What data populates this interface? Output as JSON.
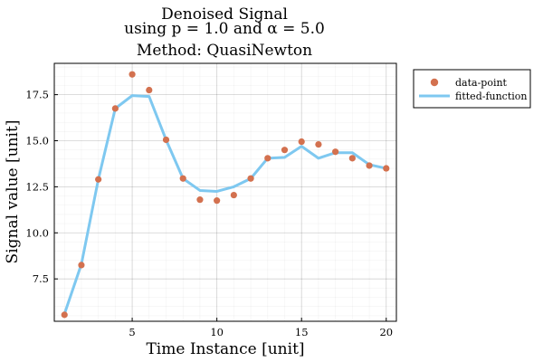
{
  "chart_data": {
    "type": "line",
    "title_lines": [
      "Denoised Signal",
      "using p = 1.0 and α = 5.0",
      "Method: QuasiNewton"
    ],
    "xlabel": "Time Instance [unit]",
    "ylabel": "Signal value [unit]",
    "xlim": [
      0.4,
      20.6
    ],
    "ylim": [
      5.2,
      19.2
    ],
    "x_ticks": [
      5,
      10,
      15,
      20
    ],
    "y_ticks": [
      7.5,
      10.0,
      12.5,
      15.0,
      17.5
    ],
    "y_tick_labels": [
      "7.5",
      "10.0",
      "12.5",
      "15.0",
      "17.5"
    ],
    "grid": true,
    "minor_grid": true,
    "legend_position": "outside-right-top",
    "series": [
      {
        "name": "data-point",
        "kind": "scatter",
        "color": "#d3714f",
        "x": [
          1,
          2,
          3,
          4,
          5,
          6,
          7,
          8,
          9,
          10,
          11,
          12,
          13,
          14,
          15,
          16,
          17,
          18,
          19,
          20
        ],
        "y": [
          5.55,
          8.25,
          12.9,
          16.75,
          18.6,
          17.75,
          15.05,
          12.95,
          11.8,
          11.75,
          12.05,
          12.95,
          14.05,
          14.5,
          14.95,
          14.8,
          14.4,
          14.05,
          13.65,
          13.5
        ]
      },
      {
        "name": "fitted-function",
        "kind": "line",
        "color": "#7ec8f0",
        "x": [
          1,
          2,
          3,
          4,
          5,
          6,
          7,
          8,
          9,
          10,
          11,
          12,
          13,
          14,
          15,
          16,
          17,
          18,
          19,
          20
        ],
        "y": [
          5.6,
          8.3,
          12.9,
          16.75,
          17.45,
          17.4,
          15.05,
          12.95,
          12.3,
          12.25,
          12.5,
          12.95,
          14.05,
          14.1,
          14.7,
          14.05,
          14.35,
          14.35,
          13.7,
          13.5
        ]
      }
    ]
  }
}
